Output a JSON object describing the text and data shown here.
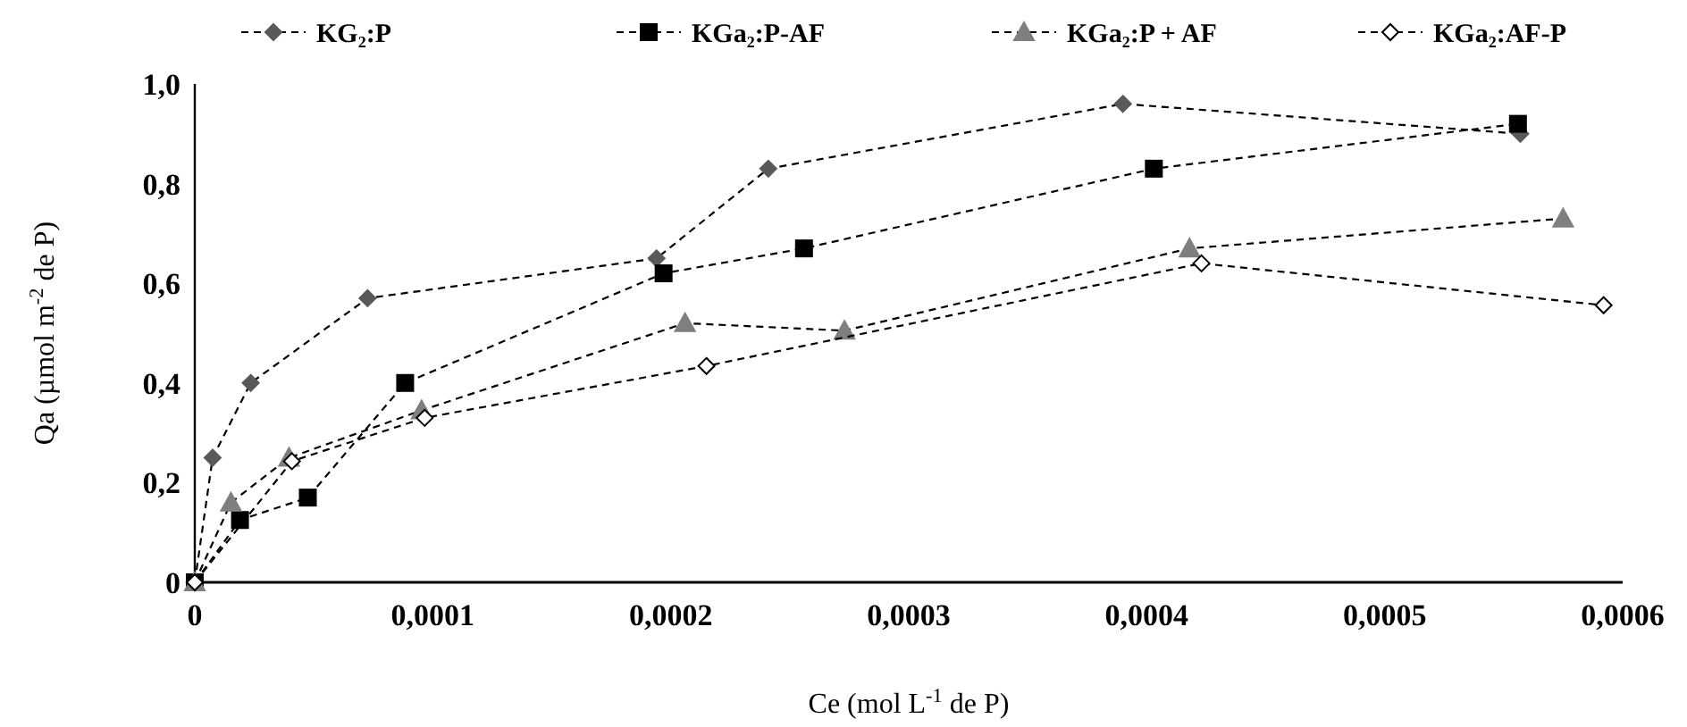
{
  "chart_data": {
    "type": "line",
    "xlabel": "Ce (mol L$^{-1}$ de P)",
    "ylabel": "Qa (µmol m$^{-2}$ de P)",
    "xlim": [
      0,
      0.0006
    ],
    "ylim": [
      0,
      1.0
    ],
    "xticks": [
      0,
      {
        "value": 0.0001,
        "label": "0,0001"
      },
      {
        "value": 0.0002,
        "label": "0,0002"
      },
      {
        "value": 0.0003,
        "label": "0,0003"
      },
      {
        "value": 0.0004,
        "label": "0,0004"
      },
      {
        "value": 0.0005,
        "label": "0,0005"
      },
      {
        "value": 0.0006,
        "label": "0,0006"
      }
    ],
    "yticks": [
      0,
      {
        "value": 0.2,
        "label": "0,2"
      },
      {
        "value": 0.4,
        "label": "0,4"
      },
      {
        "value": 0.6,
        "label": "0,6"
      },
      {
        "value": 0.8,
        "label": "0,8"
      },
      {
        "value": 1.0,
        "label": "1,0"
      }
    ],
    "grid": false,
    "legend": "top",
    "line_style": "dashed",
    "series": [
      {
        "name": "KG₂:P",
        "color": "#595959",
        "marker": "diamond",
        "x": [
          0,
          7.5e-06,
          2.35e-05,
          7.26e-05,
          0.000194,
          0.000241,
          0.00039,
          0.000557
        ],
        "values": [
          0,
          0.25,
          0.4,
          0.57,
          0.65,
          0.83,
          0.96,
          0.9
        ]
      },
      {
        "name": "KGa₂:P-AF",
        "color": "#000000",
        "marker": "square",
        "x": [
          0,
          1.9e-05,
          4.75e-05,
          8.84e-05,
          0.000197,
          0.000256,
          0.000403,
          0.000556
        ],
        "values": [
          0,
          0.125,
          0.17,
          0.4,
          0.62,
          0.67,
          0.83,
          0.92
        ]
      },
      {
        "name": "KGa₂:P + AF",
        "color": "#7f7f7f",
        "marker": "triangle",
        "x": [
          0,
          1.52e-05,
          3.96e-05,
          9.53e-05,
          0.000206,
          0.000273,
          0.000418,
          0.000575
        ],
        "values": [
          0,
          0.16,
          0.25,
          0.345,
          0.52,
          0.505,
          0.67,
          0.73
        ]
      },
      {
        "name": "KGa₂:AF-P",
        "color": "#ffffff",
        "marker": "diamond",
        "x": [
          0,
          4.08e-05,
          9.66e-05,
          0.000215,
          0.000423,
          0.000592
        ],
        "values": [
          0,
          0.243,
          0.33,
          0.434,
          0.64,
          0.556
        ]
      }
    ]
  }
}
